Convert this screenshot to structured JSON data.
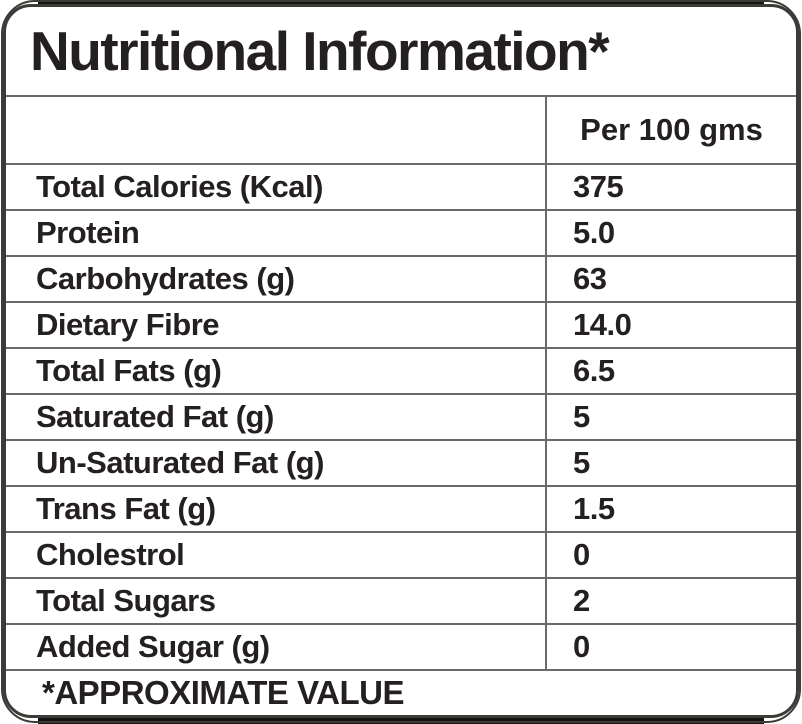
{
  "label": {
    "title": "Nutritional Information*",
    "column_header": "Per 100 gms",
    "rows": [
      {
        "name": "Total Calories (Kcal)",
        "value": "375"
      },
      {
        "name": "Protein",
        "value": "5.0"
      },
      {
        "name": "Carbohydrates (g)",
        "value": "63"
      },
      {
        "name": "Dietary Fibre",
        "value": "14.0"
      },
      {
        "name": "Total Fats (g)",
        "value": "6.5"
      },
      {
        "name": "Saturated Fat (g)",
        "value": "5"
      },
      {
        "name": "Un-Saturated Fat (g)",
        "value": "5"
      },
      {
        "name": "Trans Fat (g)",
        "value": "1.5"
      },
      {
        "name": "Cholestrol",
        "value": "0"
      },
      {
        "name": "Total Sugars",
        "value": "2"
      },
      {
        "name": "Added Sugar (g)",
        "value": "0"
      }
    ],
    "footnote": "*APPROXIMATE VALUE",
    "colors": {
      "background": "#ffffff",
      "text": "#242021",
      "grid_line": "#6a6a6a",
      "frame": "#3d3b37"
    }
  }
}
